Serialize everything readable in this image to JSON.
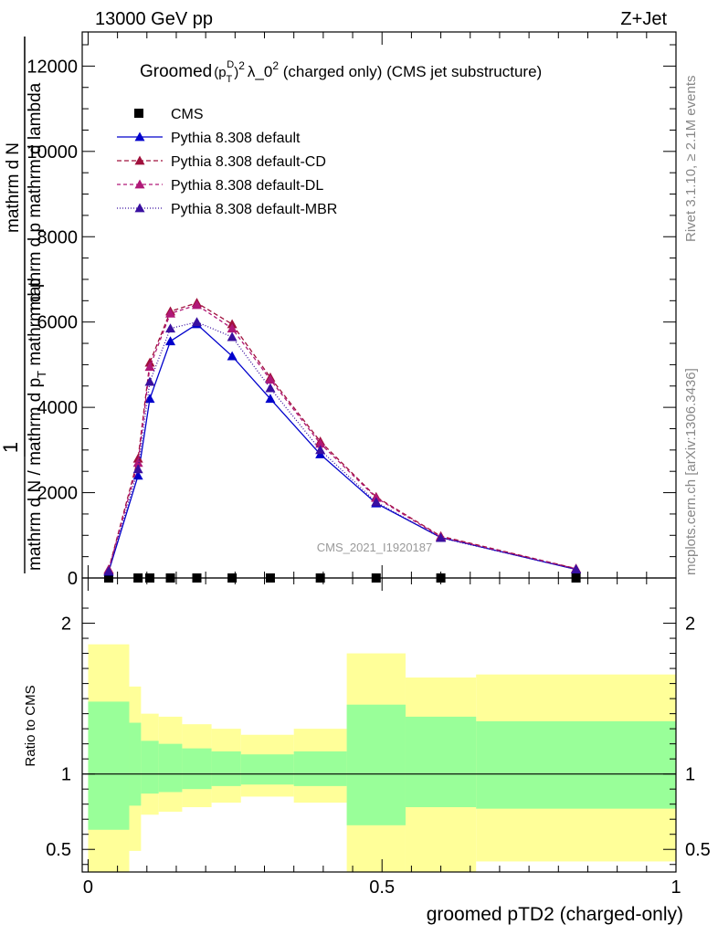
{
  "header": {
    "left": "13000 GeV pp",
    "right": "Z+Jet"
  },
  "side": {
    "rivet": "Rivet 3.1.10, ≥ 2.1M events",
    "mcplots": "mcplots.cern.ch [arXiv:1306.3436]"
  },
  "watermark": "CMS_2021_I1920187",
  "chart_data": [
    {
      "type": "line",
      "title": "Groomed (p_T^D)^2 λ_0^2 (charged only) (CMS jet substructure)",
      "title_parts": {
        "a": "Groomed",
        "b": "(p",
        "sub": "T",
        "sup": "D",
        "c": ")",
        "sq": "2",
        "d": "λ_0",
        "e": "  (charged only) (CMS jet substructure)"
      },
      "ylabel_parts": {
        "one": "1",
        "den_a": "mathrm d N / mathrm d p",
        "sub_t": "T",
        "den_b": " mathrm d p",
        "num": "mathrm d",
        "num_b": "N",
        "right": "mathrm d p  mathrm d lambda"
      },
      "ylim": [
        0,
        12800
      ],
      "yticks": [
        0,
        2000,
        4000,
        6000,
        8000,
        10000,
        12000
      ],
      "ytick_labels": [
        "0",
        "2000",
        "4000",
        "6000",
        "8000",
        "10000",
        "12000"
      ],
      "xlim": [
        -0.01,
        1.0
      ],
      "legend_position": "top-left",
      "x": [
        0.035,
        0.085,
        0.105,
        0.14,
        0.185,
        0.245,
        0.31,
        0.395,
        0.49,
        0.6,
        0.83
      ],
      "series": [
        {
          "name": "CMS",
          "color": "#000000",
          "marker": "square",
          "values": [
            0,
            0,
            0,
            0,
            0,
            0,
            0,
            0,
            0,
            0,
            0
          ]
        },
        {
          "name": "Pythia 8.308 default",
          "color": "#0000cc",
          "dash": "solid",
          "marker": "triangle",
          "values": [
            150,
            2400,
            4200,
            5550,
            5950,
            5200,
            4200,
            2900,
            1750,
            950,
            200
          ]
        },
        {
          "name": "Pythia 8.308 default-CD",
          "color": "#a0103c",
          "dash": "5,3",
          "marker": "triangle",
          "values": [
            200,
            2800,
            5050,
            6250,
            6450,
            5950,
            4700,
            3200,
            1900,
            980,
            220
          ]
        },
        {
          "name": "Pythia 8.308 default-DL",
          "color": "#b01878",
          "dash": "4,3",
          "marker": "triangle",
          "values": [
            190,
            2700,
            4950,
            6200,
            6400,
            5850,
            4650,
            3150,
            1880,
            960,
            215
          ]
        },
        {
          "name": "Pythia 8.308 default-MBR",
          "color": "#3a10a0",
          "dash": "1,2",
          "marker": "triangle",
          "values": [
            160,
            2550,
            4600,
            5850,
            6000,
            5650,
            4450,
            3000,
            1780,
            940,
            205
          ]
        }
      ]
    },
    {
      "type": "area",
      "ylabel": "Ratio to CMS",
      "xlabel": "groomed pTD2 (charged-only)",
      "ylim": [
        0.35,
        2.3
      ],
      "yticks": [
        0.5,
        1,
        2
      ],
      "ytick_labels": [
        "0.5",
        "1",
        "2"
      ],
      "xlim": [
        -0.01,
        1.0
      ],
      "xticks": [
        0,
        0.5,
        1
      ],
      "xtick_labels": [
        "0",
        "0.5",
        "1"
      ],
      "reference": 1,
      "bins": [
        {
          "x0": 0.0,
          "x1": 0.07,
          "outer": [
            0.35,
            1.86
          ],
          "inner": [
            0.63,
            1.48
          ]
        },
        {
          "x0": 0.07,
          "x1": 0.09,
          "outer": [
            0.49,
            1.58
          ],
          "inner": [
            0.79,
            1.34
          ]
        },
        {
          "x0": 0.09,
          "x1": 0.12,
          "outer": [
            0.73,
            1.4
          ],
          "inner": [
            0.87,
            1.22
          ]
        },
        {
          "x0": 0.12,
          "x1": 0.16,
          "outer": [
            0.75,
            1.38
          ],
          "inner": [
            0.88,
            1.2
          ]
        },
        {
          "x0": 0.16,
          "x1": 0.21,
          "outer": [
            0.78,
            1.33
          ],
          "inner": [
            0.9,
            1.17
          ]
        },
        {
          "x0": 0.21,
          "x1": 0.26,
          "outer": [
            0.81,
            1.3
          ],
          "inner": [
            0.92,
            1.15
          ]
        },
        {
          "x0": 0.26,
          "x1": 0.35,
          "outer": [
            0.85,
            1.26
          ],
          "inner": [
            0.93,
            1.13
          ]
        },
        {
          "x0": 0.35,
          "x1": 0.44,
          "outer": [
            0.81,
            1.3
          ],
          "inner": [
            0.92,
            1.15
          ]
        },
        {
          "x0": 0.44,
          "x1": 0.54,
          "outer": [
            0.35,
            1.8
          ],
          "inner": [
            0.66,
            1.46
          ]
        },
        {
          "x0": 0.54,
          "x1": 0.66,
          "outer": [
            0.35,
            1.64
          ],
          "inner": [
            0.78,
            1.38
          ]
        },
        {
          "x0": 0.66,
          "x1": 1.0,
          "outer": [
            0.42,
            1.66
          ],
          "inner": [
            0.77,
            1.35
          ]
        }
      ]
    }
  ]
}
